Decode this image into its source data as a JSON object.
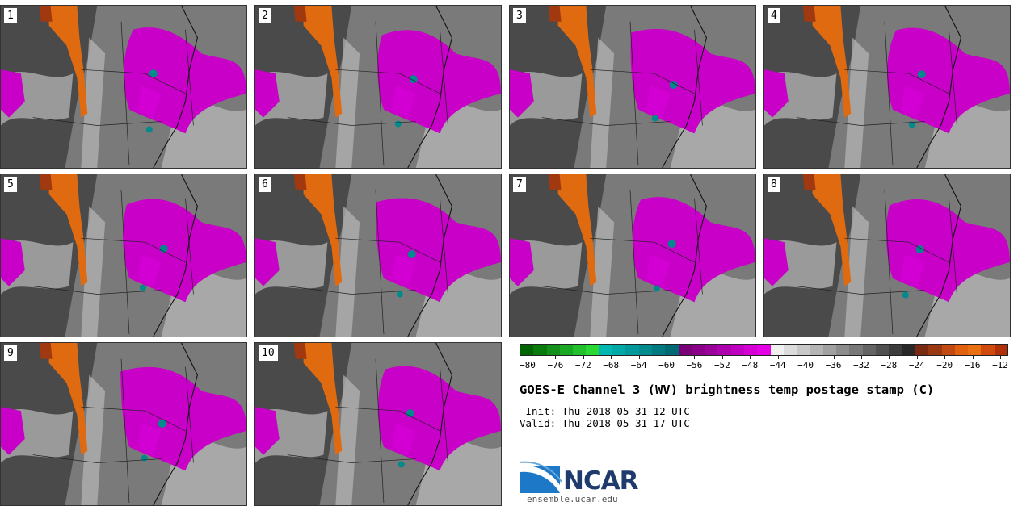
{
  "panels": [
    {
      "label": "1"
    },
    {
      "label": "2"
    },
    {
      "label": "3"
    },
    {
      "label": "4"
    },
    {
      "label": "5"
    },
    {
      "label": "6"
    },
    {
      "label": "7"
    },
    {
      "label": "8"
    },
    {
      "label": "9"
    },
    {
      "label": "10"
    }
  ],
  "colorbar": {
    "colors": [
      "#006400",
      "#0a7a0a",
      "#12901a",
      "#1aa823",
      "#22c02c",
      "#2ad834",
      "#00b8b0",
      "#00a8a8",
      "#00989a",
      "#008a8c",
      "#007a80",
      "#006a72",
      "#7a0078",
      "#8a0088",
      "#9a009a",
      "#ad00ae",
      "#c000c0",
      "#d400d4",
      "#e600e6",
      "#f0f0f0",
      "#dcdcdc",
      "#c8c8c8",
      "#b4b4b4",
      "#a0a0a0",
      "#8c8c8c",
      "#787878",
      "#646464",
      "#505050",
      "#3c3c3c",
      "#282828",
      "#7a2a10",
      "#9a3812",
      "#c04a10",
      "#e06010",
      "#e87010",
      "#d04a0c",
      "#b03008"
    ],
    "tick_values": [
      "−80",
      "−76",
      "−72",
      "−68",
      "−64",
      "−60",
      "−56",
      "−52",
      "−48",
      "−44",
      "−40",
      "−36",
      "−32",
      "−28",
      "−24",
      "−20",
      "−16",
      "−12"
    ]
  },
  "title": "GOES-E Channel 3 (WV) brightness temp postage stamp (C)",
  "init": " Init: Thu 2018-05-31 12 UTC",
  "valid": "Valid: Thu 2018-05-31 17 UTC",
  "logo_text": "NCAR",
  "site": "ensemble.ucar.edu"
}
